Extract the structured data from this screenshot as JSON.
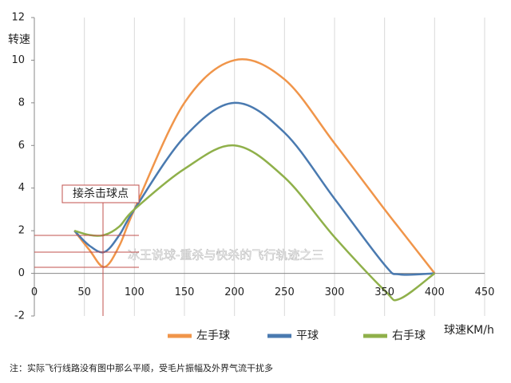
{
  "chart_data": {
    "type": "line",
    "y_label": "转速",
    "x_label": "球速KM/h",
    "annotation": "接杀击球点",
    "watermark": "冰王说球-重杀与快杀的飞行轨迹之三",
    "note": "注：实际飞行线路没有图中那么平顺，受毛片振幅及外界气流干扰多",
    "x": [
      40,
      55,
      70,
      85,
      100,
      150,
      200,
      250,
      300,
      350,
      365,
      400
    ],
    "series": [
      {
        "name": "左手球",
        "color": "#f0954a",
        "values": [
          2,
          1.1,
          0.3,
          1.3,
          3,
          8,
          10,
          9.1,
          6.1,
          3,
          2.1,
          0
        ]
      },
      {
        "name": "平球",
        "color": "#4a7ab0",
        "values": [
          2,
          1.3,
          1.0,
          1.8,
          3,
          6.4,
          8,
          6.6,
          3.5,
          0.4,
          -0.05,
          0
        ]
      },
      {
        "name": "右手球",
        "color": "#8fb04a",
        "values": [
          2,
          1.8,
          1.8,
          2.2,
          3,
          4.9,
          6,
          4.5,
          1.7,
          -0.8,
          -1.2,
          0
        ]
      }
    ],
    "xlim": [
      0,
      450
    ],
    "xticks": [
      0,
      50,
      100,
      150,
      200,
      250,
      300,
      350,
      400,
      450
    ],
    "ylim": [
      -2,
      12
    ],
    "yticks": [
      -2,
      0,
      2,
      4,
      6,
      8,
      10,
      12
    ],
    "grid": true
  }
}
